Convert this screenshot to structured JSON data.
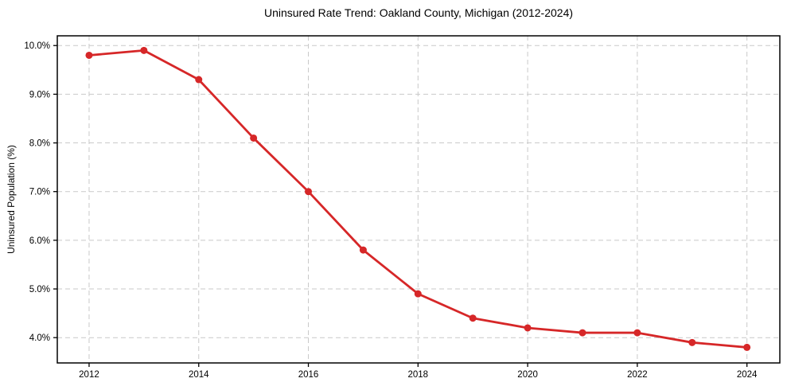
{
  "chart_data": {
    "type": "line",
    "title": "Uninsured Rate Trend: Oakland County, Michigan (2012-2024)",
    "xlabel": "",
    "ylabel": "Uninsured Population (%)",
    "x": [
      2012,
      2013,
      2014,
      2015,
      2016,
      2017,
      2018,
      2019,
      2020,
      2021,
      2022,
      2023,
      2024
    ],
    "values": [
      9.8,
      9.9,
      9.3,
      8.1,
      7.0,
      5.8,
      4.9,
      4.4,
      4.2,
      4.1,
      4.1,
      3.9,
      3.8
    ],
    "series_name": "uninsured-rate",
    "xlim": [
      2011.42,
      2024.6
    ],
    "ylim": [
      3.48,
      10.2
    ],
    "xticks": [
      2012,
      2014,
      2016,
      2018,
      2020,
      2022,
      2024
    ],
    "xtick_labels": [
      "2012",
      "2014",
      "2016",
      "2018",
      "2020",
      "2022",
      "2024"
    ],
    "yticks": [
      4,
      5,
      6,
      7,
      8,
      9,
      10
    ],
    "ytick_labels": [
      "4.0%",
      "5.0%",
      "6.0%",
      "7.0%",
      "8.0%",
      "9.0%",
      "10.0%"
    ],
    "grid": "dashed-both-axes",
    "legend": "none",
    "marker": "circle",
    "colors": {
      "line": "#d62728",
      "marker": "#d62728",
      "grid": "#c9c9c9",
      "spine": "#000000",
      "text": "#000000",
      "background": "#ffffff"
    }
  }
}
